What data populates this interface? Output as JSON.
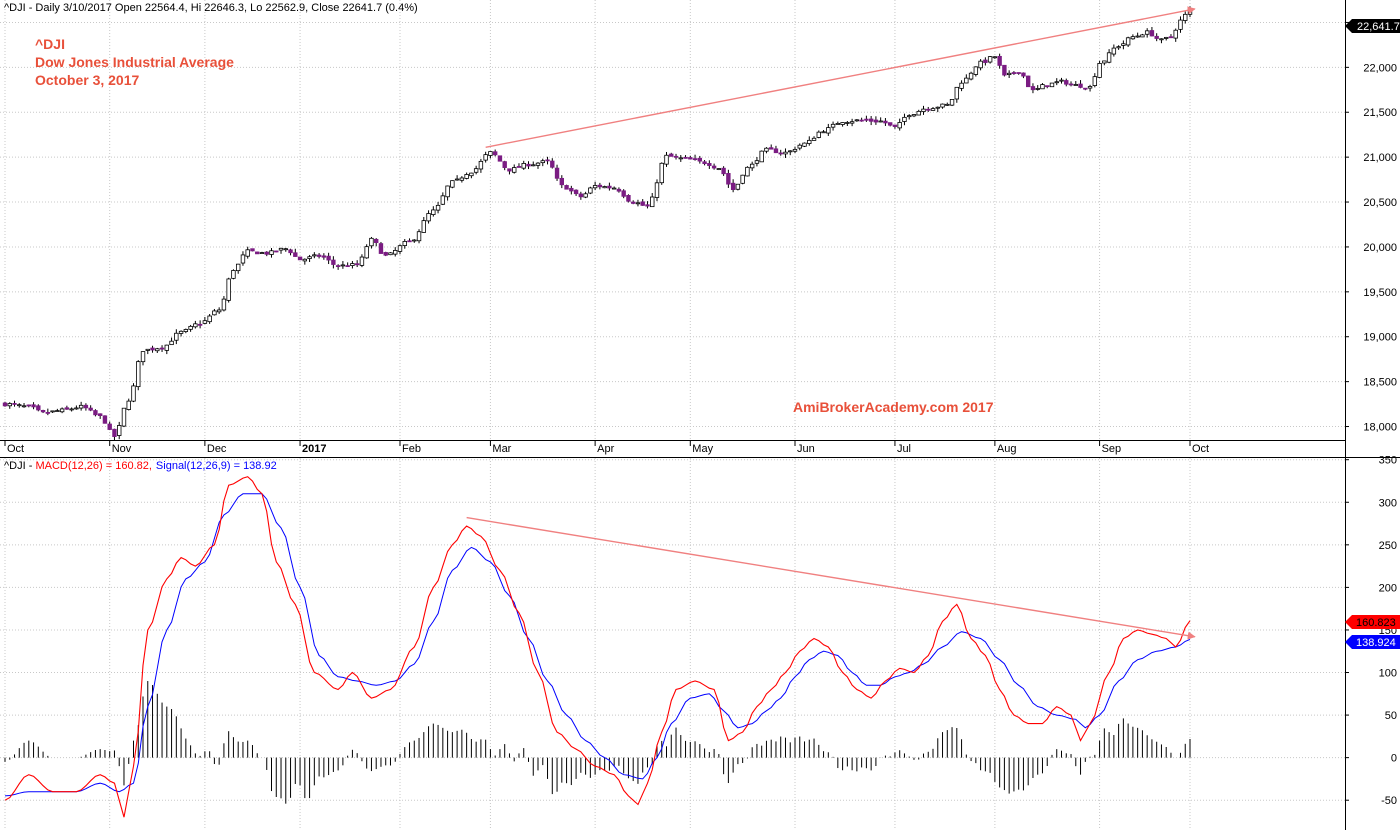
{
  "header": {
    "price_caption": "^DJI - Daily 3/10/2017 Open 22564.4, Hi 22646.3, Lo 22562.9, Close 22641.7 (0.4%)",
    "macd_caption_prefix": "^DJI - ",
    "macd_caption_macd": "MACD(12,26) = 160.82,",
    "macd_caption_signal": "Signal(12,26,9) = 138.92"
  },
  "title_block": {
    "line1": "^DJI",
    "line2": "Dow Jones Industrial Average",
    "line3": "October 3, 2017"
  },
  "watermark": "AmiBrokerAcademy.com  2017",
  "colors": {
    "up_candle": "#ffffff",
    "down_candle": "#7b1c83",
    "macd": "#ff0000",
    "signal": "#0000ff",
    "trendline": "#f08080",
    "title": "#e8503a"
  },
  "last_price_tag": "22,641.7",
  "macd_tag": "160.823",
  "signal_tag": "138.924",
  "chart_data": [
    {
      "type": "candlestick",
      "x_axis": {
        "labels": [
          "Oct",
          "Nov",
          "Dec",
          "2017",
          "Feb",
          "Mar",
          "Apr",
          "May",
          "Jun",
          "Jul",
          "Aug",
          "Sep",
          "Oct"
        ],
        "label_days": [
          0,
          22,
          42,
          62,
          83,
          102,
          124,
          144,
          166,
          187,
          208,
          230,
          249
        ],
        "total_days": 250
      },
      "y_axis": {
        "ticks": [
          "18,000",
          "18,500",
          "19,000",
          "19,500",
          "20,000",
          "20,500",
          "21,000",
          "21,500",
          "22,000",
          "22,500"
        ],
        "tick_values": [
          18000,
          18500,
          19000,
          19500,
          20000,
          20500,
          21000,
          21500,
          22000,
          22500
        ],
        "ylim": [
          17850,
          22750
        ],
        "grid": true
      },
      "close_anchors": [
        [
          0,
          18250
        ],
        [
          5,
          18220
        ],
        [
          8,
          18150
        ],
        [
          12,
          18180
        ],
        [
          16,
          18220
        ],
        [
          20,
          18110
        ],
        [
          23,
          17890
        ],
        [
          26,
          18300
        ],
        [
          29,
          18850
        ],
        [
          33,
          18880
        ],
        [
          37,
          19050
        ],
        [
          41,
          19150
        ],
        [
          45,
          19300
        ],
        [
          48,
          19750
        ],
        [
          51,
          19950
        ],
        [
          55,
          19930
        ],
        [
          59,
          19980
        ],
        [
          62,
          19860
        ],
        [
          66,
          19900
        ],
        [
          70,
          19790
        ],
        [
          74,
          19800
        ],
        [
          77,
          20080
        ],
        [
          80,
          19900
        ],
        [
          85,
          20060
        ],
        [
          90,
          20400
        ],
        [
          94,
          20720
        ],
        [
          98,
          20840
        ],
        [
          102,
          21050
        ],
        [
          106,
          20860
        ],
        [
          110,
          20920
        ],
        [
          114,
          20950
        ],
        [
          117,
          20680
        ],
        [
          121,
          20560
        ],
        [
          124,
          20680
        ],
        [
          128,
          20660
        ],
        [
          132,
          20500
        ],
        [
          135,
          20450
        ],
        [
          139,
          21010
        ],
        [
          143,
          20980
        ],
        [
          147,
          20940
        ],
        [
          150,
          20880
        ],
        [
          153,
          20640
        ],
        [
          156,
          20880
        ],
        [
          160,
          21080
        ],
        [
          164,
          21050
        ],
        [
          168,
          21150
        ],
        [
          172,
          21300
        ],
        [
          176,
          21400
        ],
        [
          180,
          21410
        ],
        [
          184,
          21400
        ],
        [
          187,
          21330
        ],
        [
          190,
          21480
        ],
        [
          194,
          21550
        ],
        [
          198,
          21580
        ],
        [
          201,
          21840
        ],
        [
          205,
          22050
        ],
        [
          208,
          22120
        ],
        [
          210,
          21900
        ],
        [
          213,
          21960
        ],
        [
          216,
          21740
        ],
        [
          219,
          21810
        ],
        [
          222,
          21840
        ],
        [
          225,
          21800
        ],
        [
          228,
          21780
        ],
        [
          230,
          22050
        ],
        [
          234,
          22240
        ],
        [
          237,
          22340
        ],
        [
          240,
          22390
        ],
        [
          243,
          22300
        ],
        [
          245,
          22340
        ],
        [
          247,
          22520
        ],
        [
          249,
          22641.7
        ]
      ],
      "trendline_price": [
        [
          101,
          21110
        ],
        [
          250,
          22650
        ]
      ]
    },
    {
      "type": "macd",
      "series": [
        {
          "name": "MACD(12,26)",
          "anchors": [
            [
              0,
              -50
            ],
            [
              5,
              -20
            ],
            [
              10,
              -40
            ],
            [
              15,
              -40
            ],
            [
              20,
              -20
            ],
            [
              23,
              -30
            ],
            [
              25,
              -70
            ],
            [
              27,
              -10
            ],
            [
              30,
              150
            ],
            [
              34,
              210
            ],
            [
              37,
              235
            ],
            [
              40,
              225
            ],
            [
              44,
              250
            ],
            [
              47,
              320
            ],
            [
              51,
              330
            ],
            [
              54,
              310
            ],
            [
              57,
              230
            ],
            [
              61,
              180
            ],
            [
              65,
              100
            ],
            [
              70,
              80
            ],
            [
              73,
              100
            ],
            [
              77,
              70
            ],
            [
              81,
              80
            ],
            [
              86,
              130
            ],
            [
              90,
              200
            ],
            [
              94,
              250
            ],
            [
              97,
              272
            ],
            [
              100,
              260
            ],
            [
              104,
              220
            ],
            [
              108,
              170
            ],
            [
              112,
              100
            ],
            [
              116,
              30
            ],
            [
              120,
              10
            ],
            [
              124,
              -10
            ],
            [
              128,
              -20
            ],
            [
              131,
              -45
            ],
            [
              133,
              -55
            ],
            [
              135,
              -30
            ],
            [
              138,
              30
            ],
            [
              141,
              80
            ],
            [
              145,
              90
            ],
            [
              149,
              80
            ],
            [
              152,
              20
            ],
            [
              155,
              30
            ],
            [
              158,
              60
            ],
            [
              161,
              80
            ],
            [
              164,
              100
            ],
            [
              167,
              125
            ],
            [
              170,
              140
            ],
            [
              173,
              130
            ],
            [
              176,
              100
            ],
            [
              179,
              80
            ],
            [
              182,
              70
            ],
            [
              185,
              90
            ],
            [
              188,
              105
            ],
            [
              191,
              100
            ],
            [
              194,
              120
            ],
            [
              197,
              160
            ],
            [
              200,
              180
            ],
            [
              203,
              140
            ],
            [
              206,
              120
            ],
            [
              209,
              80
            ],
            [
              212,
              50
            ],
            [
              215,
              40
            ],
            [
              218,
              40
            ],
            [
              221,
              60
            ],
            [
              224,
              50
            ],
            [
              226,
              20
            ],
            [
              228,
              40
            ],
            [
              232,
              100
            ],
            [
              235,
              140
            ],
            [
              238,
              150
            ],
            [
              241,
              145
            ],
            [
              244,
              140
            ],
            [
              246,
              130
            ],
            [
              249,
              160.82
            ]
          ]
        },
        {
          "name": "Signal(12,26,9)",
          "anchors": [
            [
              0,
              -45
            ],
            [
              5,
              -40
            ],
            [
              10,
              -40
            ],
            [
              15,
              -40
            ],
            [
              20,
              -30
            ],
            [
              24,
              -40
            ],
            [
              27,
              -30
            ],
            [
              30,
              60
            ],
            [
              34,
              150
            ],
            [
              38,
              210
            ],
            [
              42,
              230
            ],
            [
              46,
              285
            ],
            [
              50,
              310
            ],
            [
              54,
              310
            ],
            [
              58,
              270
            ],
            [
              62,
              200
            ],
            [
              66,
              120
            ],
            [
              70,
              95
            ],
            [
              74,
              90
            ],
            [
              78,
              85
            ],
            [
              82,
              90
            ],
            [
              86,
              110
            ],
            [
              90,
              160
            ],
            [
              94,
              220
            ],
            [
              98,
              247
            ],
            [
              102,
              230
            ],
            [
              106,
              190
            ],
            [
              110,
              140
            ],
            [
              114,
              90
            ],
            [
              118,
              50
            ],
            [
              122,
              20
            ],
            [
              126,
              0
            ],
            [
              130,
              -20
            ],
            [
              134,
              -25
            ],
            [
              137,
              0
            ],
            [
              140,
              40
            ],
            [
              144,
              70
            ],
            [
              148,
              75
            ],
            [
              151,
              55
            ],
            [
              154,
              35
            ],
            [
              157,
              40
            ],
            [
              160,
              55
            ],
            [
              163,
              70
            ],
            [
              166,
              95
            ],
            [
              169,
              115
            ],
            [
              172,
              125
            ],
            [
              175,
              120
            ],
            [
              178,
              100
            ],
            [
              181,
              85
            ],
            [
              184,
              85
            ],
            [
              187,
              95
            ],
            [
              190,
              100
            ],
            [
              193,
              110
            ],
            [
              197,
              130
            ],
            [
              201,
              148
            ],
            [
              205,
              140
            ],
            [
              209,
              115
            ],
            [
              213,
              85
            ],
            [
              217,
              60
            ],
            [
              221,
              50
            ],
            [
              225,
              45
            ],
            [
              227,
              35
            ],
            [
              230,
              50
            ],
            [
              234,
              90
            ],
            [
              238,
              115
            ],
            [
              242,
              125
            ],
            [
              246,
              130
            ],
            [
              249,
              138.92
            ]
          ]
        }
      ],
      "y_axis": {
        "ticks": [
          "-50",
          "0",
          "50",
          "100",
          "150",
          "200",
          "250",
          "300",
          "350"
        ],
        "tick_values": [
          -50,
          0,
          50,
          100,
          150,
          200,
          250,
          300,
          350
        ],
        "ylim": [
          -85,
          352
        ],
        "grid": true
      },
      "trendline_macd": [
        [
          97,
          282
        ],
        [
          250,
          142
        ]
      ]
    }
  ]
}
